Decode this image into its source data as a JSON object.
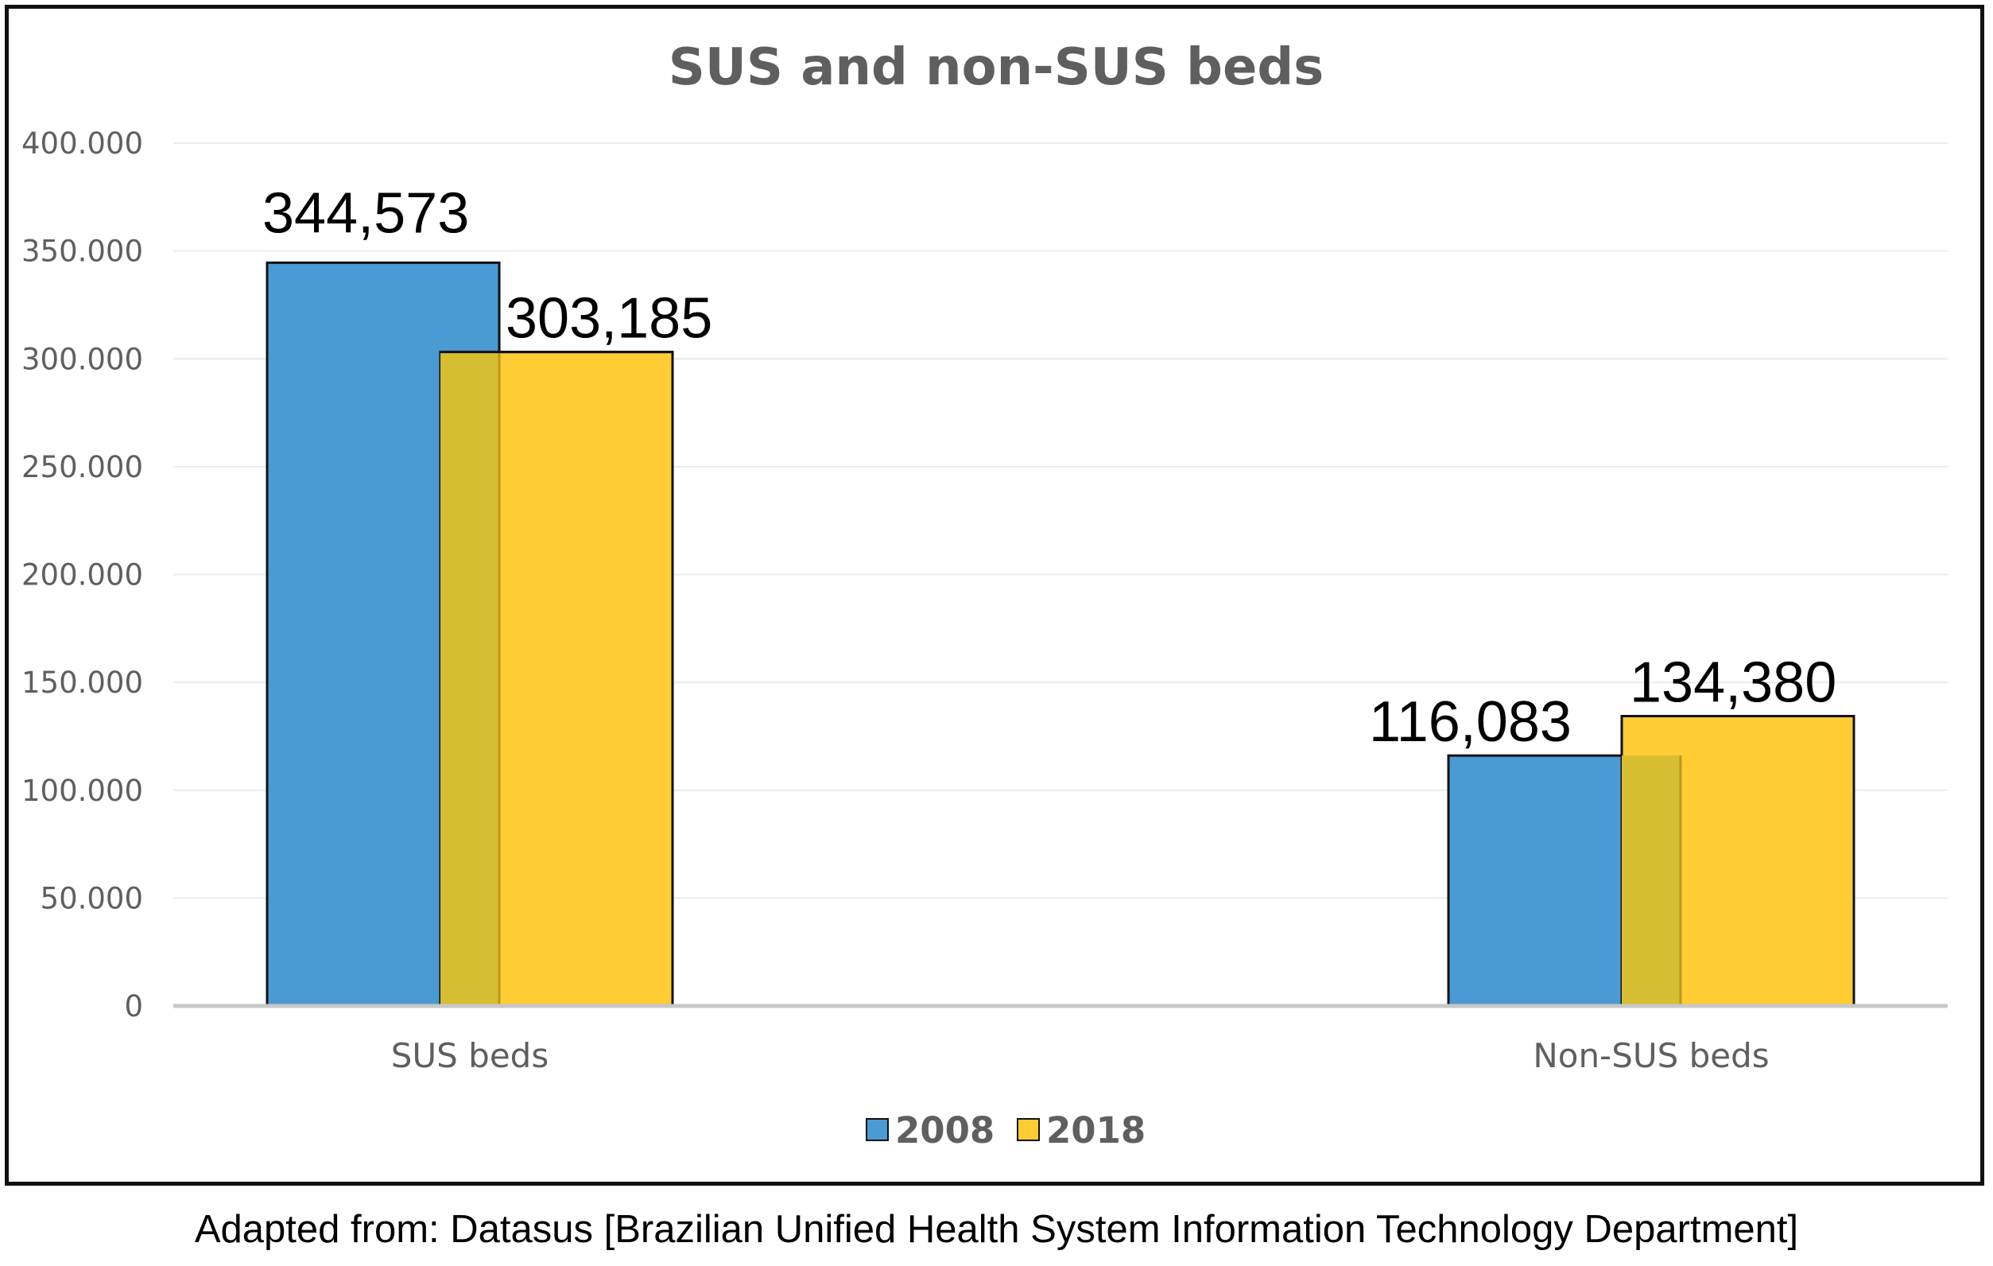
{
  "chart_data": {
    "type": "bar",
    "title": "SUS and non-SUS beds",
    "categories": [
      "SUS beds",
      "Non-SUS beds"
    ],
    "series": [
      {
        "name": "2008",
        "values": [
          344573,
          116083
        ],
        "labels": [
          "344,573",
          "116,083"
        ],
        "color": "#4a9ad4"
      },
      {
        "name": "2018",
        "values": [
          303185,
          134380
        ],
        "labels": [
          "303,185",
          "134,380"
        ],
        "color": "#ffcc33"
      }
    ],
    "overlap_color": "#d7bd31",
    "yticks": [
      "0",
      "50.000",
      "100.000",
      "150.000",
      "200.000",
      "250.000",
      "300.000",
      "350.000",
      "400.000"
    ],
    "ylim": [
      0,
      400000
    ],
    "grid": true,
    "legend_position": "bottom",
    "xlabel": "",
    "ylabel": ""
  },
  "source_note": "Adapted from: Datasus [Brazilian Unified Health System Information Technology Department]"
}
